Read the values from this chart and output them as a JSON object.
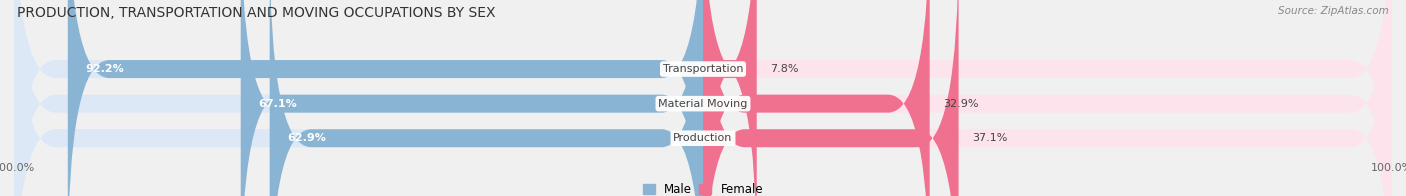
{
  "title": "PRODUCTION, TRANSPORTATION AND MOVING OCCUPATIONS BY SEX",
  "source": "Source: ZipAtlas.com",
  "categories": [
    "Transportation",
    "Material Moving",
    "Production"
  ],
  "male_values": [
    92.2,
    67.1,
    62.9
  ],
  "female_values": [
    7.8,
    32.9,
    37.1
  ],
  "male_color": "#8ab4d4",
  "female_color": "#f07090",
  "male_bg_color": "#dce8f5",
  "female_bg_color": "#fde4ec",
  "male_label": "Male",
  "female_label": "Female",
  "axis_label": "100.0%",
  "background_color": "#f0f0f0",
  "title_fontsize": 10,
  "label_fontsize": 8,
  "value_fontsize": 8,
  "bar_height": 0.52,
  "rounding": 6
}
